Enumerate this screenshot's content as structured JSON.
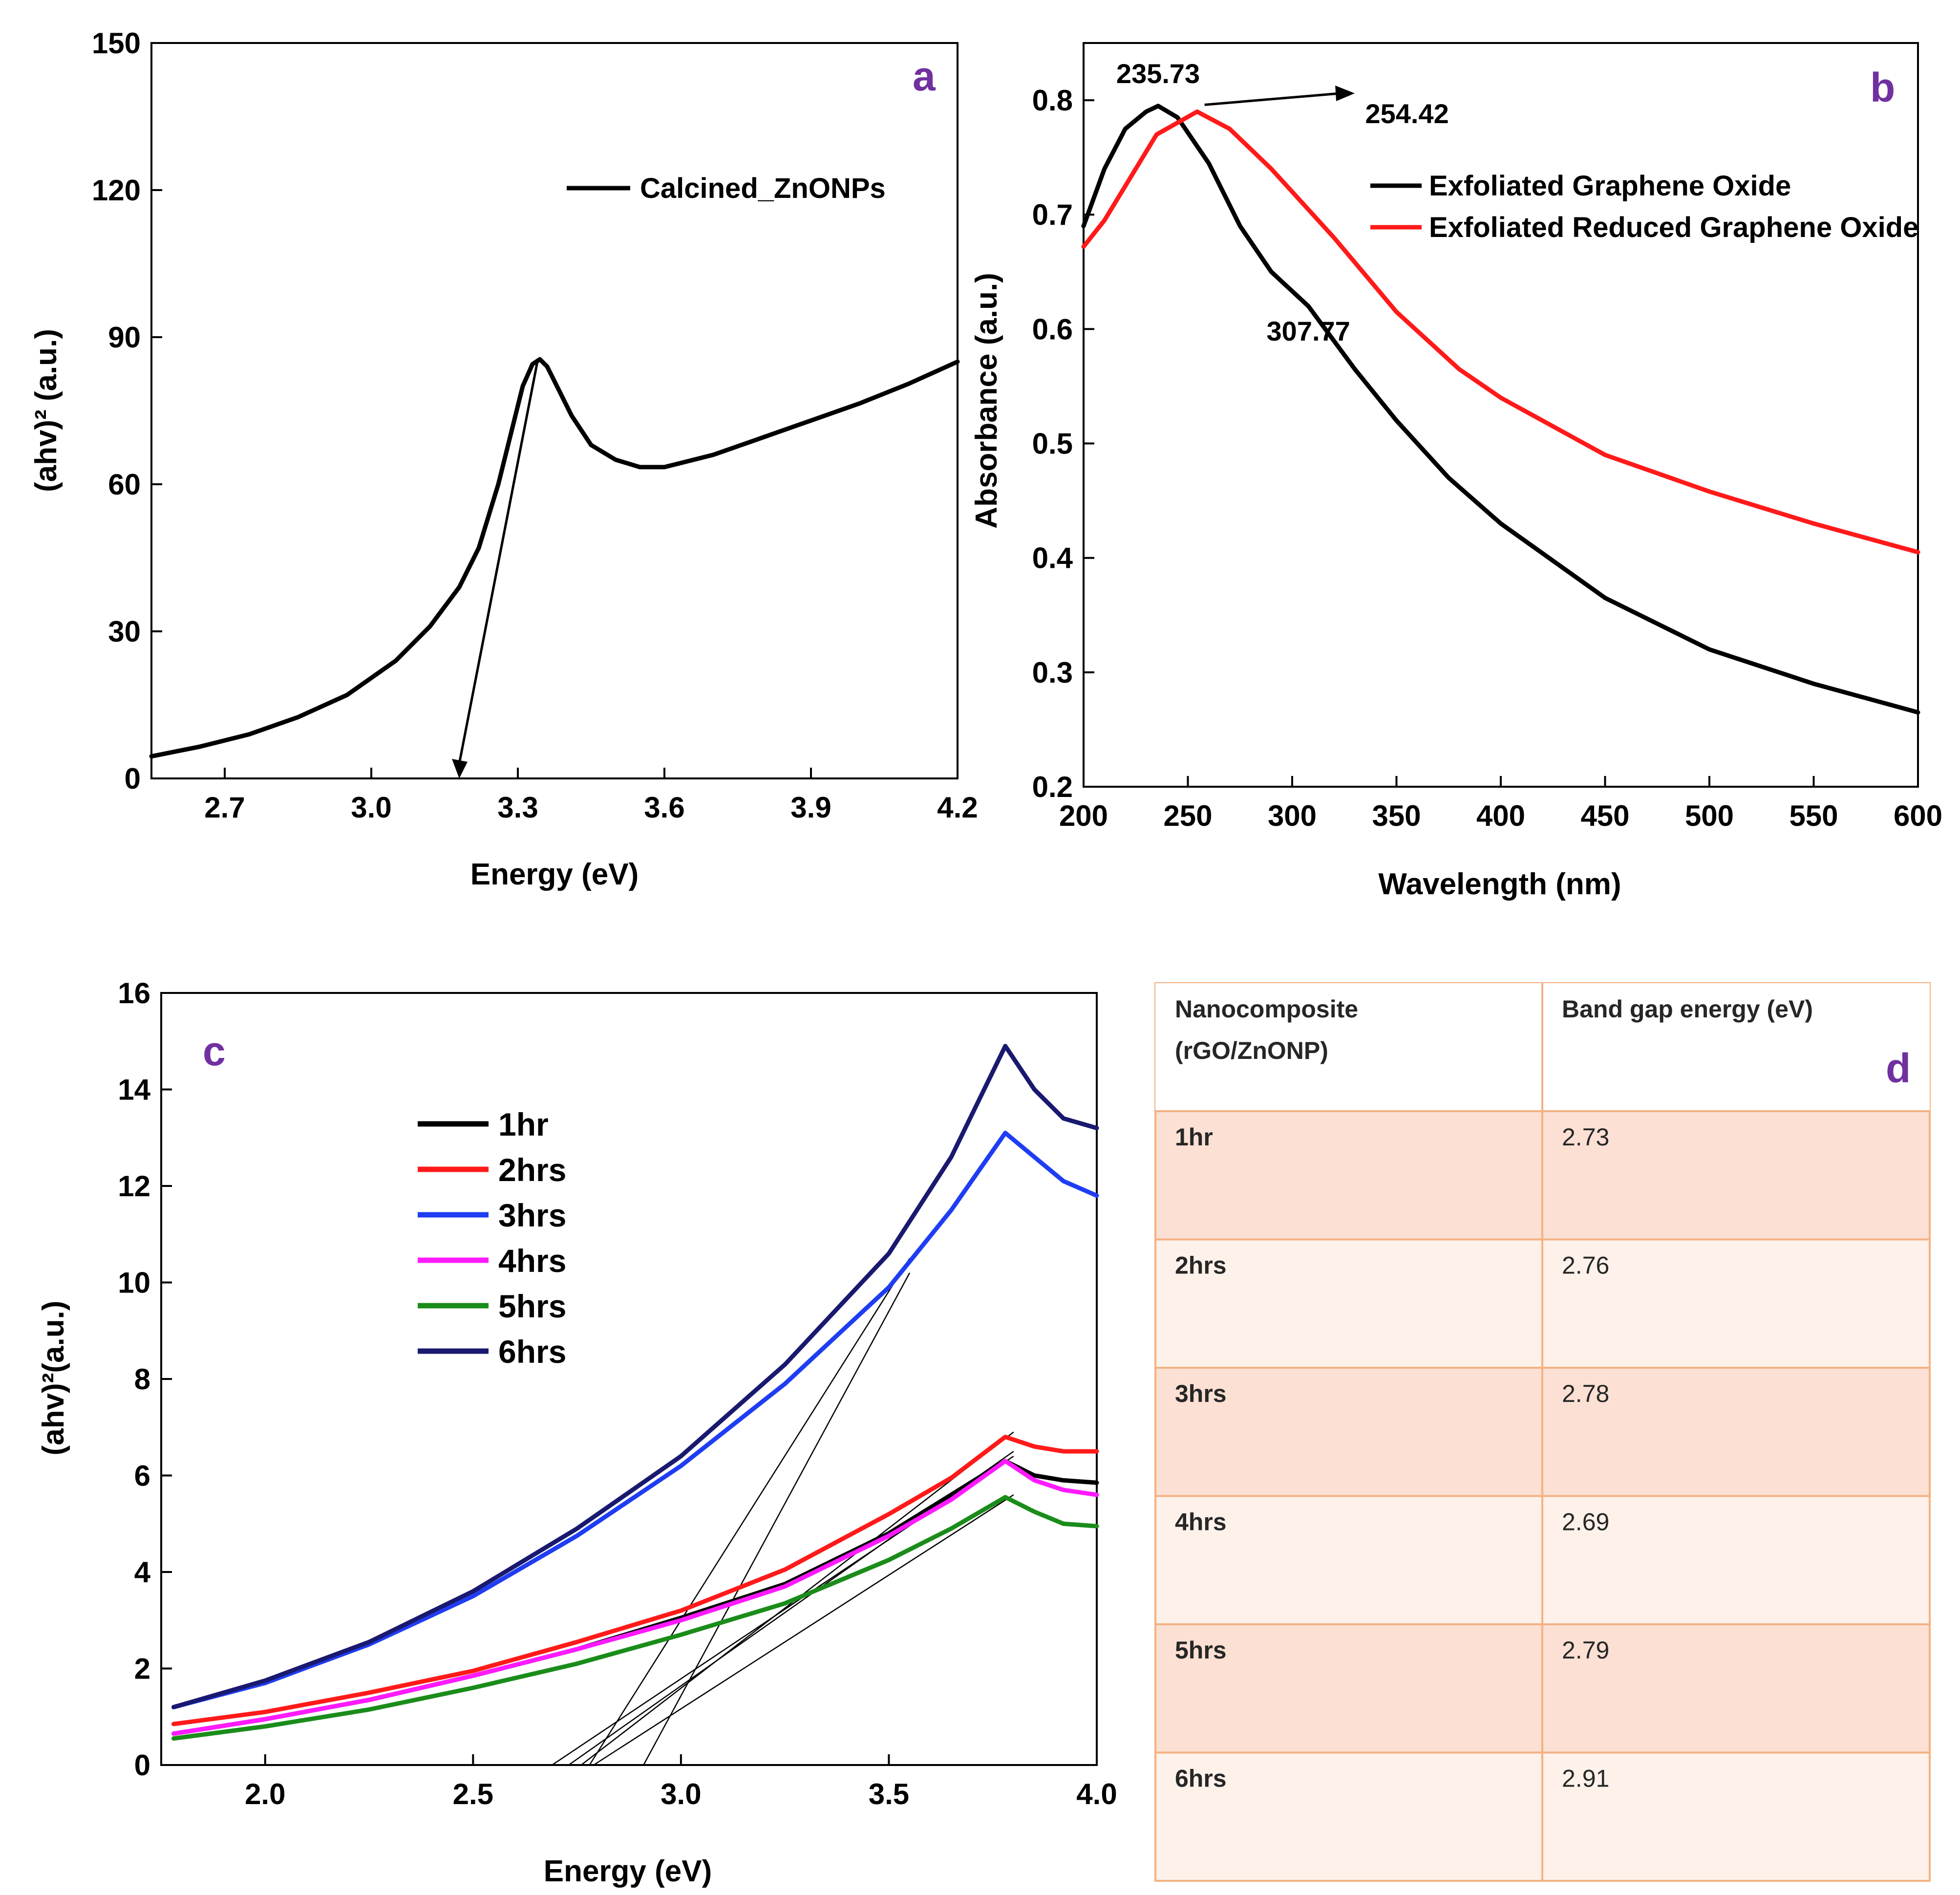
{
  "colors": {
    "black": "#000000",
    "red": "#ff1a1a",
    "blue": "#1f3df2",
    "magenta": "#ff1aff",
    "green": "#1a8c1a",
    "navy": "#191970",
    "panel_letter": "#7030a0",
    "table_border": "#f4b183",
    "table_shade": "#fbe0d3",
    "table_light": "#fdf1ea"
  },
  "chart_data": [
    {
      "panel": "a",
      "type": "line",
      "xlabel": "Energy (eV)",
      "ylabel": "(ahv)² (a.u.)",
      "xlim": [
        2.55,
        4.2
      ],
      "ylim": [
        0,
        150
      ],
      "xticks": [
        "2.7",
        "3.0",
        "3.3",
        "3.6",
        "3.9",
        "4.2"
      ],
      "yticks": [
        "0",
        "30",
        "60",
        "90",
        "120",
        "150"
      ],
      "legend": [
        "Calcined_ZnONPs"
      ],
      "series": [
        {
          "name": "Calcined_ZnONPs",
          "color": "#000000",
          "x": [
            2.55,
            2.65,
            2.75,
            2.85,
            2.95,
            3.05,
            3.12,
            3.18,
            3.22,
            3.26,
            3.29,
            3.31,
            3.33,
            3.345,
            3.36,
            3.38,
            3.41,
            3.45,
            3.5,
            3.55,
            3.6,
            3.7,
            3.8,
            3.9,
            4.0,
            4.1,
            4.2
          ],
          "y": [
            4.5,
            6.5,
            9,
            12.5,
            17,
            24,
            31,
            39,
            47,
            60,
            72,
            80,
            84.5,
            85.5,
            84,
            80,
            74,
            68,
            65,
            63.5,
            63.5,
            66,
            69.5,
            73,
            76.5,
            80.5,
            85
          ]
        }
      ],
      "annotation": {
        "type": "arrow",
        "from": [
          3.34,
          85
        ],
        "to": [
          3.18,
          0
        ]
      }
    },
    {
      "panel": "b",
      "type": "line",
      "xlabel": "Wavelength (nm)",
      "ylabel": "Absorbance (a.u.)",
      "xlim": [
        200,
        600
      ],
      "ylim": [
        0.2,
        0.85
      ],
      "xticks": [
        "200",
        "250",
        "300",
        "350",
        "400",
        "450",
        "500",
        "550",
        "600"
      ],
      "yticks": [
        "0.2",
        "0.3",
        "0.4",
        "0.5",
        "0.6",
        "0.7",
        "0.8"
      ],
      "legend": [
        "Exfoliated Graphene Oxide",
        "Exfoliated Reduced Graphene Oxide"
      ],
      "series": [
        {
          "name": "Exfoliated Graphene Oxide",
          "color": "#000000",
          "x": [
            200,
            210,
            220,
            230,
            235.73,
            245,
            260,
            275,
            290,
            307.77,
            330,
            350,
            375,
            400,
            450,
            500,
            550,
            600
          ],
          "y": [
            0.69,
            0.74,
            0.775,
            0.79,
            0.795,
            0.785,
            0.745,
            0.69,
            0.65,
            0.62,
            0.565,
            0.52,
            0.47,
            0.43,
            0.365,
            0.32,
            0.29,
            0.265
          ]
        },
        {
          "name": "Exfoliated Reduced Graphene Oxide",
          "color": "#ff1a1a",
          "x": [
            200,
            210,
            220,
            235,
            254.42,
            270,
            290,
            320,
            350,
            380,
            400,
            450,
            500,
            550,
            600
          ],
          "y": [
            0.672,
            0.695,
            0.725,
            0.77,
            0.79,
            0.775,
            0.74,
            0.68,
            0.615,
            0.565,
            0.54,
            0.49,
            0.458,
            0.43,
            0.405
          ]
        }
      ],
      "annotations": [
        "235.73",
        "254.42",
        "307.77"
      ]
    },
    {
      "panel": "c",
      "type": "line",
      "xlabel": "Energy (eV)",
      "ylabel": "(ahv)²(a.u.)",
      "xlim": [
        1.75,
        4.0
      ],
      "ylim": [
        0,
        16
      ],
      "xticks": [
        "2.0",
        "2.5",
        "3.0",
        "3.5",
        "4.0"
      ],
      "yticks": [
        "0",
        "2",
        "4",
        "6",
        "8",
        "10",
        "12",
        "14",
        "16"
      ],
      "legend": [
        "1hr",
        "2hrs",
        "3hrs",
        "4hrs",
        "5hrs",
        "6hrs"
      ],
      "series": [
        {
          "name": "1hr",
          "color": "#000000",
          "x": [
            1.78,
            2.0,
            2.25,
            2.5,
            2.75,
            3.0,
            3.25,
            3.5,
            3.65,
            3.78,
            3.85,
            3.92,
            4.0
          ],
          "y": [
            0.65,
            0.95,
            1.35,
            1.85,
            2.4,
            3.05,
            3.75,
            4.8,
            5.6,
            6.3,
            6.0,
            5.9,
            5.85
          ]
        },
        {
          "name": "2hrs",
          "color": "#ff1a1a",
          "x": [
            1.78,
            2.0,
            2.25,
            2.5,
            2.75,
            3.0,
            3.25,
            3.5,
            3.65,
            3.78,
            3.85,
            3.92,
            4.0
          ],
          "y": [
            0.85,
            1.1,
            1.5,
            1.95,
            2.55,
            3.2,
            4.05,
            5.2,
            5.95,
            6.8,
            6.6,
            6.5,
            6.5
          ]
        },
        {
          "name": "3hrs",
          "color": "#1f3df2",
          "x": [
            1.78,
            2.0,
            2.25,
            2.5,
            2.75,
            3.0,
            3.25,
            3.5,
            3.65,
            3.78,
            3.85,
            3.92,
            4.0
          ],
          "y": [
            1.2,
            1.7,
            2.5,
            3.5,
            4.75,
            6.2,
            7.9,
            9.9,
            11.5,
            13.1,
            12.6,
            12.1,
            11.8
          ]
        },
        {
          "name": "4hrs",
          "color": "#ff1aff",
          "x": [
            1.78,
            2.0,
            2.25,
            2.5,
            2.75,
            3.0,
            3.25,
            3.5,
            3.65,
            3.78,
            3.85,
            3.92,
            4.0
          ],
          "y": [
            0.65,
            0.95,
            1.35,
            1.85,
            2.4,
            3.0,
            3.7,
            4.75,
            5.5,
            6.3,
            5.9,
            5.7,
            5.6
          ]
        },
        {
          "name": "5hrs",
          "color": "#1a8c1a",
          "x": [
            1.78,
            2.0,
            2.25,
            2.5,
            2.75,
            3.0,
            3.25,
            3.5,
            3.65,
            3.78,
            3.85,
            3.92,
            4.0
          ],
          "y": [
            0.55,
            0.8,
            1.15,
            1.6,
            2.1,
            2.7,
            3.35,
            4.25,
            4.9,
            5.55,
            5.25,
            5.0,
            4.95
          ]
        },
        {
          "name": "6hrs",
          "color": "#191970",
          "x": [
            1.78,
            2.0,
            2.25,
            2.5,
            2.75,
            3.0,
            3.25,
            3.5,
            3.65,
            3.78,
            3.85,
            3.92,
            4.0
          ],
          "y": [
            1.2,
            1.75,
            2.55,
            3.6,
            4.9,
            6.4,
            8.3,
            10.6,
            12.6,
            14.9,
            14.0,
            13.4,
            13.2
          ]
        }
      ],
      "tangents": [
        {
          "x": [
            2.73,
            3.8
          ],
          "y": [
            0,
            6.5
          ]
        },
        {
          "x": [
            2.76,
            3.8
          ],
          "y": [
            0,
            6.9
          ]
        },
        {
          "x": [
            2.78,
            3.55
          ],
          "y": [
            0,
            10.5
          ]
        },
        {
          "x": [
            2.69,
            3.8
          ],
          "y": [
            0,
            6.4
          ]
        },
        {
          "x": [
            2.79,
            3.8
          ],
          "y": [
            0,
            5.6
          ]
        },
        {
          "x": [
            2.91,
            3.55
          ],
          "y": [
            0,
            10.2
          ]
        }
      ]
    }
  ],
  "table": {
    "panel": "d",
    "headers": [
      "Nanocomposite",
      "(rGO/ZnONP)",
      "Band gap energy (eV)"
    ],
    "rows": [
      {
        "sample": "1hr",
        "value": "2.73"
      },
      {
        "sample": "2hrs",
        "value": "2.76"
      },
      {
        "sample": "3hrs",
        "value": "2.78"
      },
      {
        "sample": "4hrs",
        "value": "2.69"
      },
      {
        "sample": "5hrs",
        "value": "2.79"
      },
      {
        "sample": "6hrs",
        "value": "2.91"
      }
    ]
  }
}
